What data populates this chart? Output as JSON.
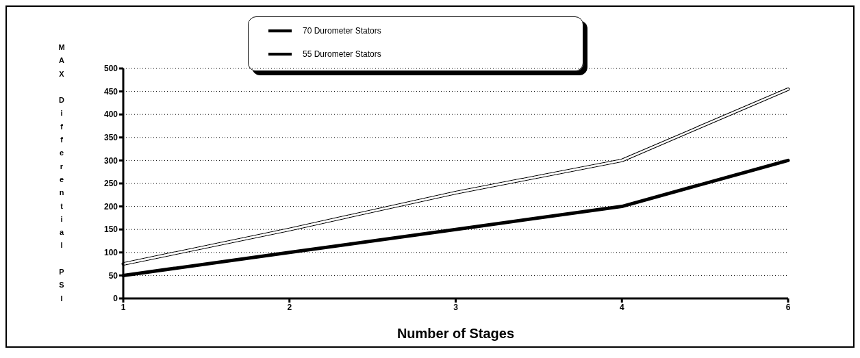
{
  "chart_data": {
    "type": "line",
    "xlabel": "Number of Stages",
    "ylabel": "MAX Differential PSI",
    "categories": [
      "1",
      "2",
      "3",
      "4",
      "6"
    ],
    "series": [
      {
        "name": "70 Durometer Stators",
        "color": "#000000",
        "values": [
          75,
          150,
          230,
          300,
          455
        ]
      },
      {
        "name": "55 Durometer Stators",
        "color": "#000000",
        "values": [
          50,
          100,
          150,
          200,
          300
        ]
      }
    ],
    "ylim": [
      0,
      500
    ],
    "yticks": [
      0,
      50,
      100,
      150,
      200,
      250,
      300,
      350,
      400,
      450,
      500
    ],
    "grid": "y",
    "legend": "top",
    "marker": "none",
    "line_style": "solid"
  }
}
